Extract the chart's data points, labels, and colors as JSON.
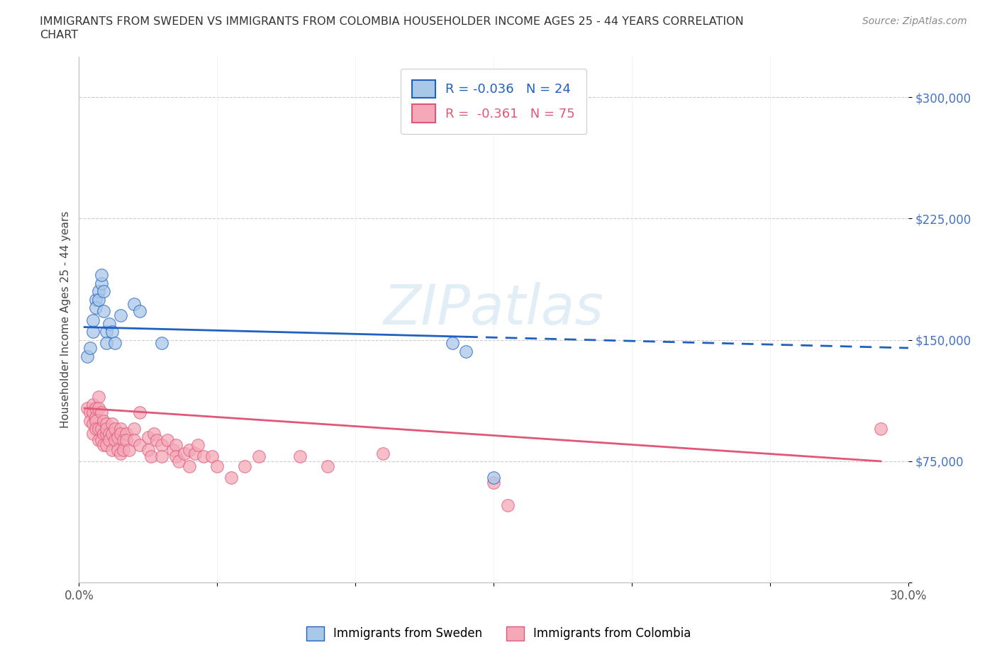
{
  "title_line1": "IMMIGRANTS FROM SWEDEN VS IMMIGRANTS FROM COLOMBIA HOUSEHOLDER INCOME AGES 25 - 44 YEARS CORRELATION",
  "title_line2": "CHART",
  "source": "Source: ZipAtlas.com",
  "ylabel": "Householder Income Ages 25 - 44 years",
  "xlim": [
    0.0,
    0.3
  ],
  "ylim": [
    0,
    325000
  ],
  "yticks": [
    0,
    75000,
    150000,
    225000,
    300000
  ],
  "ytick_labels": [
    "",
    "$75,000",
    "$150,000",
    "$225,000",
    "$300,000"
  ],
  "xticks": [
    0.0,
    0.05,
    0.1,
    0.15,
    0.2,
    0.25,
    0.3
  ],
  "xtick_labels": [
    "0.0%",
    "",
    "",
    "",
    "",
    "",
    "30.0%"
  ],
  "legend_sweden_label": "R = -0.036   N = 24",
  "legend_colombia_label": "R =  -0.361   N = 75",
  "sweden_color": "#A8C8E8",
  "colombia_color": "#F4A8B8",
  "sweden_line_color": "#2060C0",
  "colombia_line_color": "#E05878",
  "watermark": "ZIPatlas",
  "sweden_scatter_x": [
    0.003,
    0.004,
    0.005,
    0.005,
    0.006,
    0.006,
    0.007,
    0.007,
    0.008,
    0.008,
    0.009,
    0.009,
    0.01,
    0.01,
    0.011,
    0.012,
    0.013,
    0.015,
    0.02,
    0.022,
    0.03,
    0.135,
    0.14,
    0.15
  ],
  "sweden_scatter_y": [
    140000,
    145000,
    155000,
    162000,
    175000,
    170000,
    180000,
    175000,
    185000,
    190000,
    180000,
    168000,
    155000,
    148000,
    160000,
    155000,
    148000,
    165000,
    172000,
    168000,
    148000,
    148000,
    143000,
    65000
  ],
  "colombia_scatter_x": [
    0.003,
    0.004,
    0.004,
    0.005,
    0.005,
    0.005,
    0.005,
    0.006,
    0.006,
    0.006,
    0.006,
    0.007,
    0.007,
    0.007,
    0.007,
    0.008,
    0.008,
    0.008,
    0.009,
    0.009,
    0.009,
    0.01,
    0.01,
    0.01,
    0.01,
    0.011,
    0.011,
    0.012,
    0.012,
    0.012,
    0.013,
    0.013,
    0.014,
    0.014,
    0.015,
    0.015,
    0.015,
    0.016,
    0.016,
    0.017,
    0.017,
    0.018,
    0.02,
    0.02,
    0.022,
    0.022,
    0.025,
    0.025,
    0.026,
    0.027,
    0.028,
    0.03,
    0.03,
    0.032,
    0.034,
    0.035,
    0.035,
    0.036,
    0.038,
    0.04,
    0.04,
    0.042,
    0.043,
    0.045,
    0.048,
    0.05,
    0.055,
    0.06,
    0.065,
    0.08,
    0.09,
    0.11,
    0.15,
    0.155,
    0.29
  ],
  "colombia_scatter_y": [
    108000,
    105000,
    100000,
    110000,
    105000,
    98000,
    92000,
    102000,
    100000,
    95000,
    108000,
    115000,
    108000,
    95000,
    88000,
    105000,
    95000,
    88000,
    100000,
    92000,
    85000,
    92000,
    98000,
    95000,
    85000,
    92000,
    88000,
    98000,
    92000,
    82000,
    95000,
    88000,
    90000,
    82000,
    95000,
    92000,
    80000,
    88000,
    82000,
    92000,
    88000,
    82000,
    95000,
    88000,
    105000,
    85000,
    90000,
    82000,
    78000,
    92000,
    88000,
    85000,
    78000,
    88000,
    82000,
    85000,
    78000,
    75000,
    80000,
    82000,
    72000,
    80000,
    85000,
    78000,
    78000,
    72000,
    65000,
    72000,
    78000,
    78000,
    72000,
    80000,
    62000,
    48000,
    95000
  ]
}
